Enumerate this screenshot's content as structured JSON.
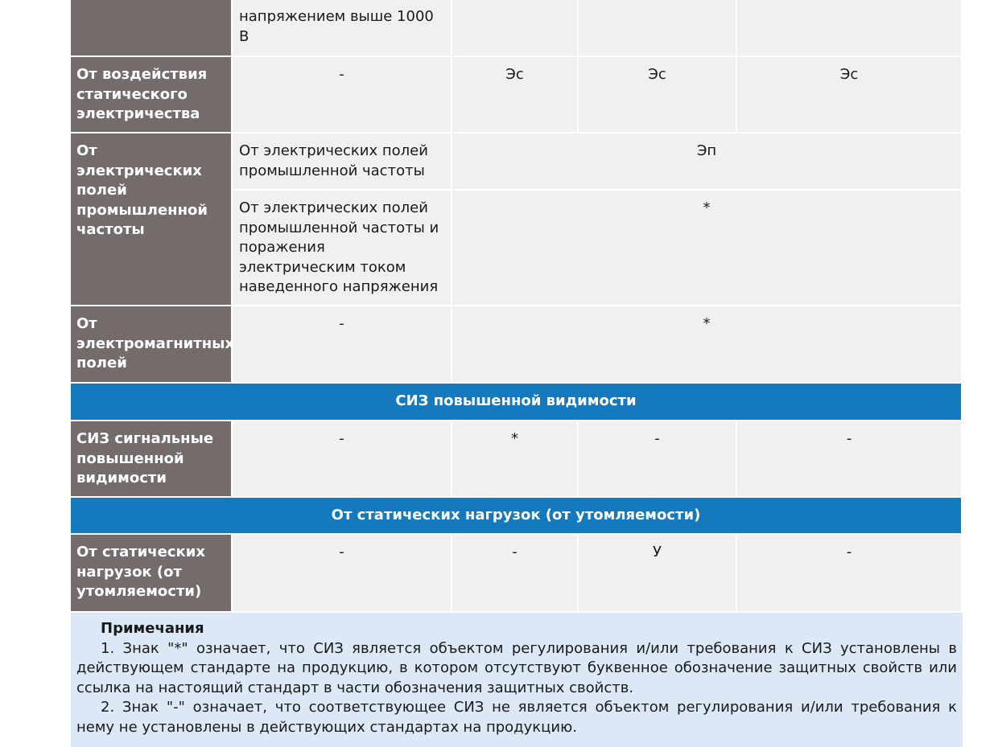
{
  "table": {
    "row_top": {
      "c1": "напряжением выше 1000 В"
    },
    "row_static": {
      "head": "От воздействия статического электричества",
      "c1": "-",
      "c2": "Эс",
      "c3": "Эс",
      "c4": "Эс"
    },
    "row_field": {
      "head": "От электрических полей промышленной частоты",
      "sub1_label": "От электрических полей промышленной частоты",
      "sub1_value": "Эп",
      "sub2_label": "От электрических полей промышленной частоты и поражения электрическим током наведенного напряжения",
      "sub2_value": "*"
    },
    "row_em": {
      "head": "От электромагнитных полей",
      "c1": "-",
      "c2": "*"
    },
    "section_visibility": "СИЗ повышенной видимости",
    "row_visibility": {
      "head": "СИЗ сигнальные повышенной видимости",
      "c1": "-",
      "c2": "*",
      "c3": "-",
      "c4": "-"
    },
    "section_static_load": "От статических нагрузок (от утомляемости)",
    "row_static_load": {
      "head": "От статических нагрузок (от утомляемости)",
      "c1": "-",
      "c2": "-",
      "c3": "У",
      "c4": "-"
    }
  },
  "notes": {
    "title": "Примечания",
    "item1": "1. Знак \"*\" означает, что СИЗ является объектом регулирования  и/или требования к СИЗ установлены в действующем стандарте на продукцию, в котором отсутствуют буквенное обозначение защитных свойств или ссылка на настоящий стандарт в части обозначения защитных свойств.",
    "item2": "2. Знак \"-\" означает, что соответствующее СИЗ не является объектом регулирования и/или требования к нему не установлены в действующих стандартах на продукцию."
  }
}
